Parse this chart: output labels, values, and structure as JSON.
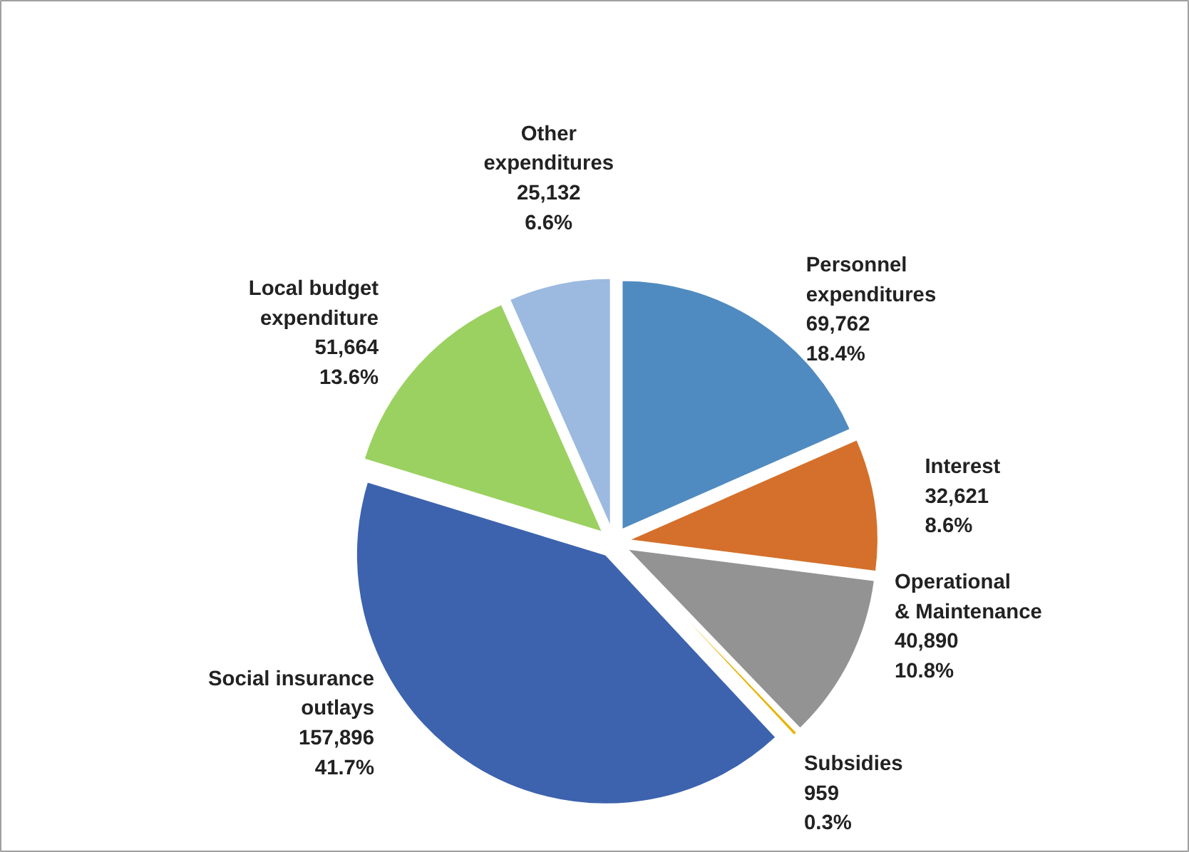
{
  "chart_data": {
    "type": "pie",
    "categories": [
      "Personnel expenditures",
      "Interest",
      "Operational & Maintenance",
      "Subsidies",
      "Social insurance outlays",
      "Local budget expenditure",
      "Other expenditures"
    ],
    "values": [
      69762,
      32621,
      40890,
      959,
      157896,
      51664,
      25132
    ],
    "colors": [
      "#4f8bc0",
      "#d4702b",
      "#939393",
      "#e8b400",
      "#3d63ae",
      "#9bd160",
      "#9cbae0"
    ],
    "value_labels": [
      "69,762\n18.4%",
      "32,621\n8.6%",
      "40,890\n10.8%",
      "959\n0.3%",
      "157,896\n41.7%",
      "51,664\n13.6%",
      "25,132\n6.6%"
    ]
  }
}
